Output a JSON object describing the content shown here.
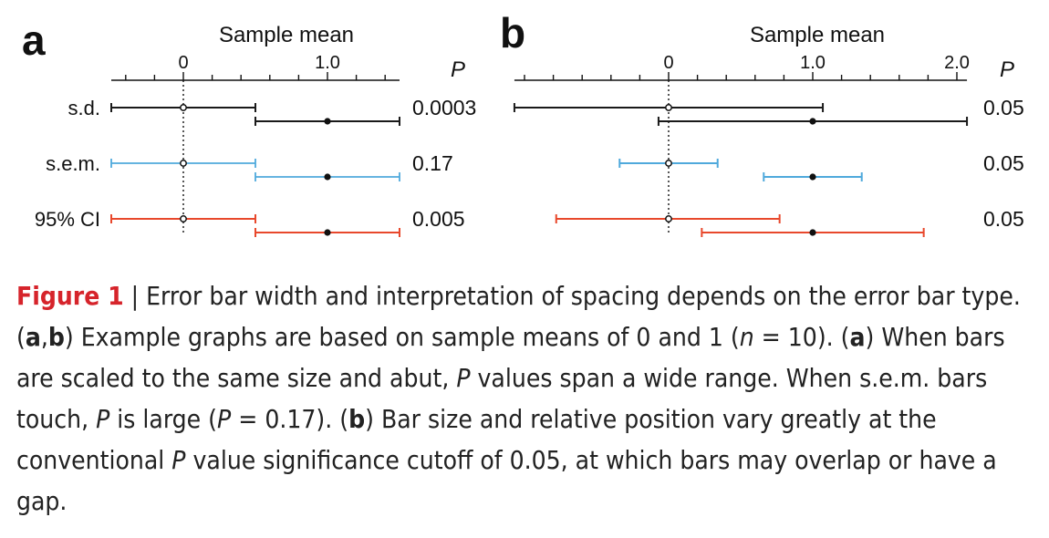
{
  "chart_data": [
    {
      "type": "errorbar",
      "panel": "a",
      "title": "Sample mean",
      "xlim": [
        -0.5,
        1.5
      ],
      "xticks": [
        0,
        1.0
      ],
      "xtick_labels": [
        "0",
        "1.0"
      ],
      "p_header": "P",
      "rows": [
        {
          "label": "s.d.",
          "color": "#1a1a1a",
          "p_value": "0.0003",
          "bars": [
            {
              "mean": 0,
              "low": -0.5,
              "high": 0.5
            },
            {
              "mean": 1,
              "low": 0.5,
              "high": 1.5
            }
          ]
        },
        {
          "label": "s.e.m.",
          "color": "#4fa9dc",
          "p_value": "0.17",
          "bars": [
            {
              "mean": 0,
              "low": -0.5,
              "high": 0.5
            },
            {
              "mean": 1,
              "low": 0.5,
              "high": 1.5
            }
          ]
        },
        {
          "label": "95% CI",
          "color": "#e8482c",
          "p_value": "0.005",
          "bars": [
            {
              "mean": 0,
              "low": -0.5,
              "high": 0.5
            },
            {
              "mean": 1,
              "low": 0.5,
              "high": 1.5
            }
          ]
        }
      ]
    },
    {
      "type": "errorbar",
      "panel": "b",
      "title": "Sample mean",
      "xlim": [
        -1.07,
        2.07
      ],
      "xticks": [
        0,
        1.0,
        2.0
      ],
      "xtick_labels": [
        "0",
        "1.0",
        "2.0"
      ],
      "p_header": "P",
      "rows": [
        {
          "label": "s.d.",
          "color": "#1a1a1a",
          "p_value": "0.05",
          "bars": [
            {
              "mean": 0,
              "low": -1.07,
              "high": 1.07
            },
            {
              "mean": 1,
              "low": -0.07,
              "high": 2.07
            }
          ]
        },
        {
          "label": "s.e.m.",
          "color": "#4fa9dc",
          "p_value": "0.05",
          "bars": [
            {
              "mean": 0,
              "low": -0.34,
              "high": 0.34
            },
            {
              "mean": 1,
              "low": 0.66,
              "high": 1.34
            }
          ]
        },
        {
          "label": "95% CI",
          "color": "#e8482c",
          "p_value": "0.05",
          "bars": [
            {
              "mean": 0,
              "low": -0.78,
              "high": 0.77
            },
            {
              "mean": 1,
              "low": 0.23,
              "high": 1.77
            }
          ]
        }
      ]
    }
  ],
  "caption": {
    "figure_label": "Figure 1",
    "separator": " | ",
    "t1": "Error bar width and interpretation of spacing depends on the error bar type. (",
    "t2": "a",
    "t3": ",",
    "t4": "b",
    "t5": ") Example graphs are based on sample means of 0 and 1 (",
    "t6": "n",
    "t7": " = 10). (",
    "t8": "a",
    "t9": ") When bars are scaled to the same size and abut, ",
    "t10": "P",
    "t11": " values span a wide range. When s.e.m. bars touch, ",
    "t12": "P",
    "t13": " is large (",
    "t14": "P",
    "t15": " = 0.17). (",
    "t16": "b",
    "t17": ") Bar size and relative position vary greatly at the conventional ",
    "t18": "P",
    "t19": " value significance cutoff of 0.05, at which bars may overlap or have a gap."
  }
}
